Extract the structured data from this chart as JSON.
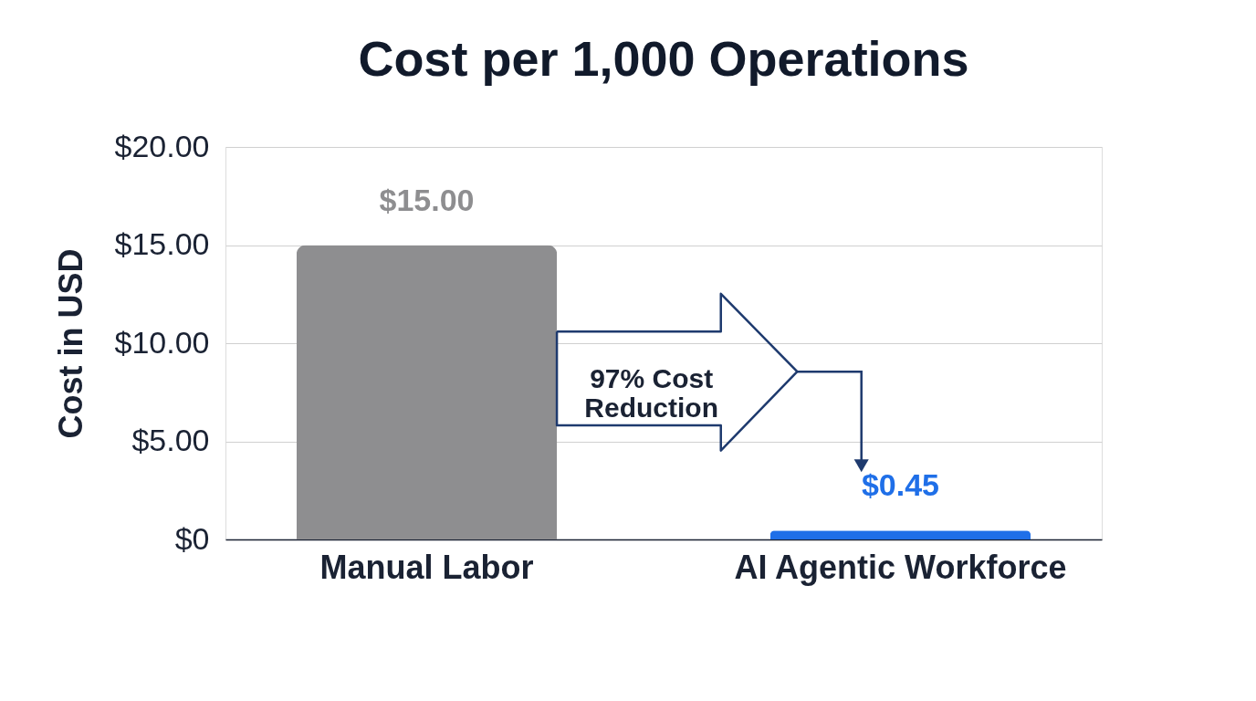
{
  "chart_data": {
    "type": "bar",
    "title": "Cost per 1,000 Operations",
    "ylabel": "Cost in USD",
    "categories": [
      "Manual Labor",
      "AI Agentic Workforce"
    ],
    "values": [
      15,
      0.45
    ],
    "colors": [
      "#8e8e90",
      "#1f6fe8"
    ],
    "value_labels": [
      "$15.00",
      "$0.45"
    ],
    "ylim": [
      0,
      20
    ],
    "yticks": [
      {
        "value": 0,
        "label": "$0"
      },
      {
        "value": 5,
        "label": "$5.00"
      },
      {
        "value": 10,
        "label": "$10.00"
      },
      {
        "value": 15,
        "label": "$15.00"
      },
      {
        "value": 20,
        "label": "$20.00"
      }
    ],
    "grid": "y",
    "annotations": [
      "97% Cost Reduction"
    ]
  }
}
